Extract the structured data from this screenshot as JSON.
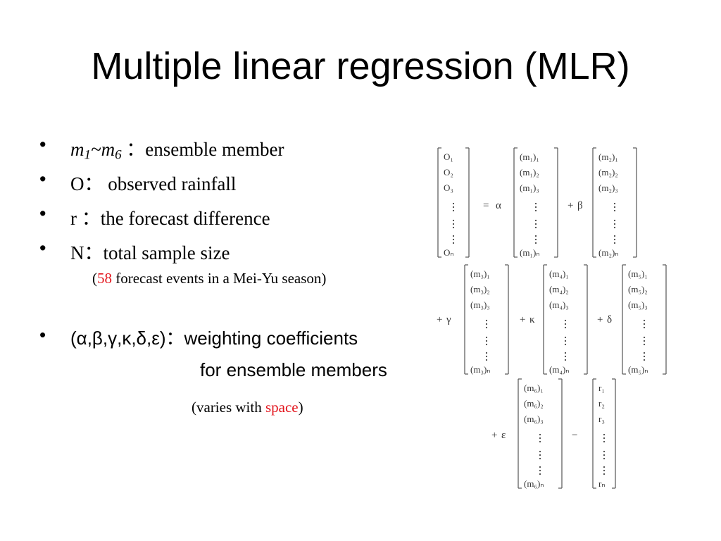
{
  "title": "Multiple linear regression (MLR)",
  "bullets": {
    "b1": {
      "m": "m",
      "sub_start": "1",
      "tilde": "~",
      "sub_end": "6",
      "sep": "：",
      "text": "ensemble member"
    },
    "b2": {
      "label": "O",
      "sep": "：",
      "text": " observed rainfall"
    },
    "b3": {
      "label": "r ",
      "sep": "：",
      "text": "the forecast difference"
    },
    "b4": {
      "label": "N",
      "sep": "：",
      "text": "total sample size"
    },
    "note1": {
      "open": "(",
      "count": "58",
      "text": " forecast events in a Mei-Yu season)"
    },
    "b5": {
      "label": "(α,β,γ,κ,δ,ε)",
      "sep": "：",
      "text": "weighting coefficients"
    },
    "b5_cont": "for ensemble members",
    "note2": {
      "open": "(varies with ",
      "highlight": "space",
      "close": ")"
    }
  },
  "equation": {
    "equals": "=",
    "vectors": [
      {
        "top": "O₁",
        "entries": [
          "O₁",
          "O₂",
          "O₃",
          "Oₙ"
        ]
      },
      {
        "coef": "α",
        "entries": [
          "(m₁)₁",
          "(m₁)₂",
          "(m₁)₃",
          "(m₁)ₙ"
        ]
      },
      {
        "coef": "β",
        "entries": [
          "(m₂)₁",
          "(m₂)₂",
          "(m₂)₃",
          "(m₂)ₙ"
        ]
      },
      {
        "coef": "γ",
        "entries": [
          "(m₃)₁",
          "(m₃)₂",
          "(m₃)₃",
          "(m₃)ₙ"
        ]
      },
      {
        "coef": "κ",
        "entries": [
          "(m₄)₁",
          "(m₄)₂",
          "(m₄)₃",
          "(m₄)ₙ"
        ]
      },
      {
        "coef": "δ",
        "entries": [
          "(m₅)₁",
          "(m₅)₂",
          "(m₅)₃",
          "(m₅)ₙ"
        ]
      },
      {
        "coef": "ε",
        "entries": [
          "(m₆)₁",
          "(m₆)₂",
          "(m₆)₃",
          "(m₆)ₙ"
        ]
      },
      {
        "coef": "−",
        "entries": [
          "r₁",
          "r₂",
          "r₃",
          "rₙ"
        ]
      }
    ]
  }
}
